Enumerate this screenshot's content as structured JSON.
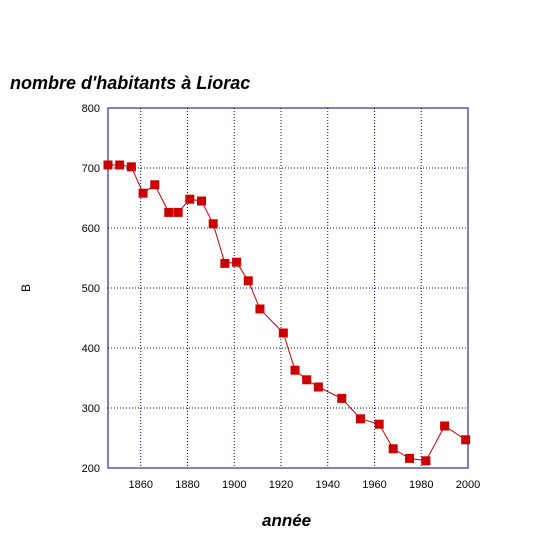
{
  "chart_data": {
    "type": "line",
    "title": "nombre d'habitants à Liorac",
    "xlabel": "année",
    "ylabel": "B",
    "xlim": [
      1846,
      2000
    ],
    "ylim": [
      200,
      800
    ],
    "xticks": [
      1860,
      1880,
      1900,
      1920,
      1940,
      1960,
      1980,
      2000
    ],
    "yticks": [
      200,
      300,
      400,
      500,
      600,
      700,
      800
    ],
    "grid": true,
    "series": [
      {
        "x": [
          1846,
          1851,
          1856,
          1861,
          1866,
          1872,
          1876,
          1881,
          1886,
          1891,
          1896,
          1901,
          1906,
          1911,
          1921,
          1926,
          1931,
          1936,
          1946,
          1954,
          1962,
          1968,
          1975,
          1982,
          1990,
          1999
        ],
        "values": [
          705,
          705,
          702,
          658,
          672,
          626,
          626,
          648,
          645,
          607,
          541,
          543,
          512,
          465,
          425,
          363,
          347,
          335,
          316,
          282,
          273,
          232,
          216,
          212,
          270,
          247
        ]
      }
    ]
  },
  "colors": {
    "series": "#cc0000",
    "axis_frame": "#000080",
    "grid": "#000080"
  }
}
